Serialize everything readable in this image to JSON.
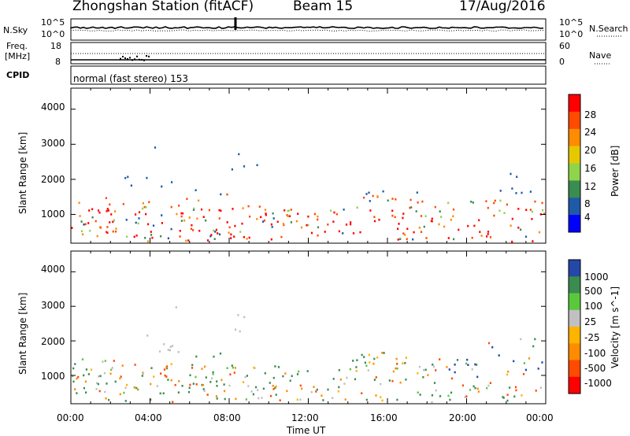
{
  "header": {
    "station": "Zhongshan Station (fitACF)",
    "beam": "Beam 15",
    "date": "17/Aug/2016"
  },
  "top_panels": {
    "nsky_label": "N.Sky",
    "nsky_ticks": [
      "10^5",
      "10^0"
    ],
    "nsearch_label": "N.Search",
    "nsearch_ticks": [
      "10^5",
      "10^0"
    ],
    "freq_label_1": "Freq.",
    "freq_label_2": "[MHz]",
    "freq_ticks": [
      "18",
      "8"
    ],
    "nave_label": "Nave",
    "nave_ticks": [
      "60",
      "0"
    ],
    "cpid_label": "CPID",
    "cpid_text": "normal (fast stereo) 153"
  },
  "chart_data": [
    {
      "type": "heatmap",
      "title": "",
      "ylabel": "Slant Range [km]",
      "yticks": [
        1000,
        2000,
        3000,
        4000
      ],
      "ylim": [
        180,
        4600
      ],
      "xlim": [
        0,
        24
      ],
      "colorbar_label": "Power [dB]",
      "colorbar_ticks": [
        "28",
        "24",
        "20",
        "16",
        "12",
        "8",
        "4"
      ],
      "colorbar_colors": [
        "#ff0000",
        "#ff4a00",
        "#ff8c00",
        "#e6c800",
        "#8fd44a",
        "#3a8c50",
        "#1e5aa8",
        "#0000ff"
      ]
    },
    {
      "type": "heatmap",
      "title": "",
      "ylabel": "Slant Range [km]",
      "yticks": [
        1000,
        2000,
        3000,
        4000
      ],
      "ylim": [
        180,
        4600
      ],
      "xlim": [
        0,
        24
      ],
      "colorbar_label": "Velocity [m s^-1]",
      "colorbar_ticks": [
        "1000",
        "500",
        "100",
        "25",
        "-25",
        "-100",
        "-500",
        "-1000"
      ],
      "colorbar_colors": [
        "#2448a8",
        "#3a8c50",
        "#5ac83c",
        "#c0c0c0",
        "#ffb400",
        "#ff8c00",
        "#ff4a00",
        "#ff0000"
      ]
    }
  ],
  "xaxis": {
    "ticks": [
      "00:00",
      "04:00",
      "08:00",
      "12:00",
      "16:00",
      "20:00",
      "00:00"
    ],
    "label": "Time UT"
  }
}
